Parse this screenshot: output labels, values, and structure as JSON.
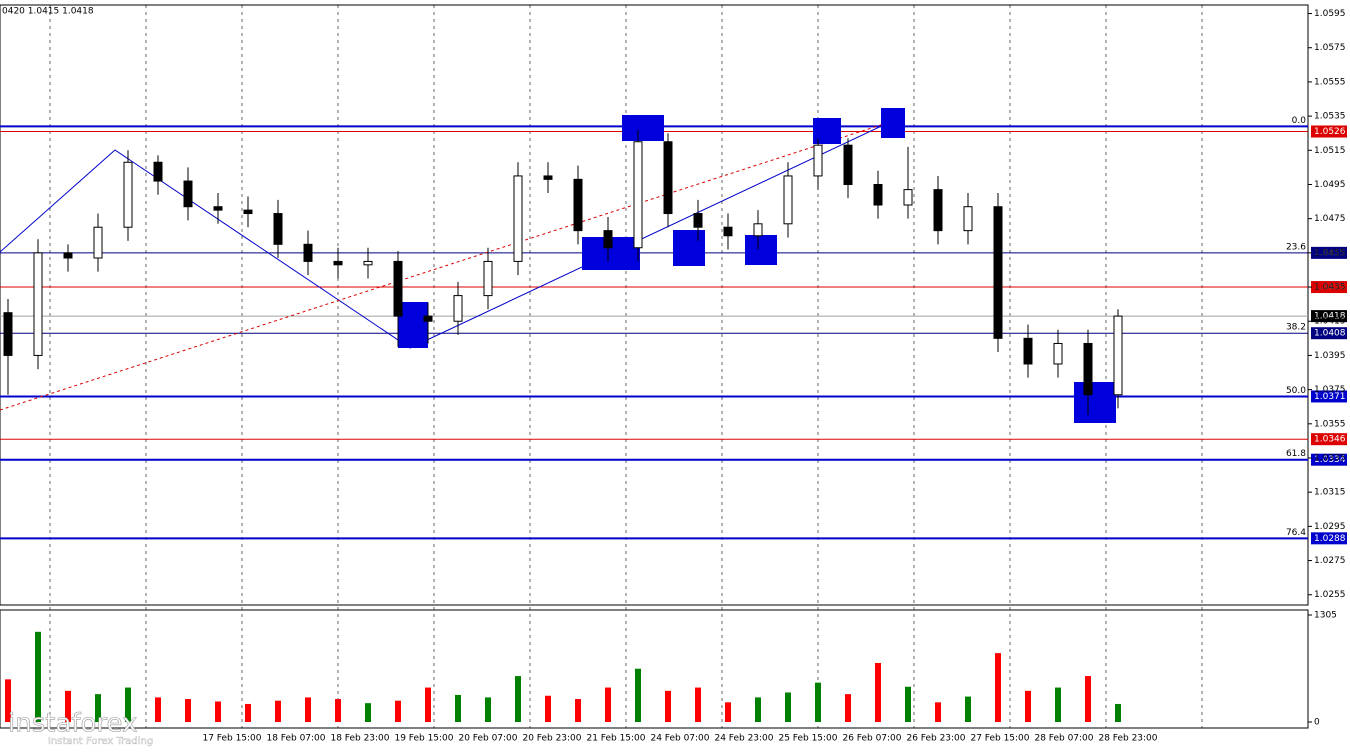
{
  "chart_data": {
    "type": "candlestick",
    "header": "0420 1.0415 1.0418",
    "watermark": "instaforex",
    "watermark_sub": "Instant Forex Trading",
    "categories": [
      "17 Feb 15:00",
      "18 Feb 07:00",
      "18 Feb 23:00",
      "19 Feb 15:00",
      "20 Feb 07:00",
      "20 Feb 23:00",
      "21 Feb 15:00",
      "24 Feb 07:00",
      "24 Feb 23:00",
      "25 Feb 15:00",
      "26 Feb 07:00",
      "26 Feb 23:00",
      "27 Feb 15:00",
      "28 Feb 07:00",
      "28 Feb 23:00"
    ],
    "ylim": [
      1.0249,
      1.06
    ],
    "yticks": [
      1.0255,
      1.0275,
      1.0295,
      1.0315,
      1.0335,
      1.0355,
      1.0375,
      1.0395,
      1.0415,
      1.0435,
      1.0455,
      1.0475,
      1.0495,
      1.0515,
      1.0535,
      1.0555,
      1.0575,
      1.0595
    ],
    "grid": true,
    "bull_color": "#ffffff",
    "bear_color": "#000000",
    "open": [
      1.042,
      1.0395,
      1.0455,
      1.0452,
      1.047,
      1.0508,
      1.0497,
      1.0482,
      1.048,
      1.0478,
      1.046,
      1.045,
      1.0448,
      1.045,
      1.0418,
      1.0415,
      1.043,
      1.045,
      1.05,
      1.0498,
      1.0468,
      1.0458,
      1.052,
      1.0478,
      1.047,
      1.0465,
      1.0472,
      1.05,
      1.0518,
      1.0495,
      1.0483,
      1.0492,
      1.0468,
      1.0482,
      1.0405,
      1.039,
      1.0402,
      1.0372
    ],
    "high": [
      1.0428,
      1.0463,
      1.046,
      1.0478,
      1.0515,
      1.0512,
      1.0505,
      1.049,
      1.0488,
      1.0486,
      1.0468,
      1.0458,
      1.0458,
      1.0456,
      1.0426,
      1.0438,
      1.0458,
      1.0508,
      1.0508,
      1.0506,
      1.0476,
      1.0527,
      1.0525,
      1.0486,
      1.0478,
      1.048,
      1.0508,
      1.0522,
      1.0522,
      1.0503,
      1.0517,
      1.05,
      1.049,
      1.049,
      1.0413,
      1.041,
      1.041,
      1.0422
    ],
    "low": [
      1.0372,
      1.0387,
      1.0444,
      1.0444,
      1.0462,
      1.0489,
      1.0474,
      1.0472,
      1.047,
      1.0452,
      1.0442,
      1.044,
      1.044,
      1.04,
      1.0402,
      1.0407,
      1.0422,
      1.0442,
      1.049,
      1.046,
      1.045,
      1.045,
      1.047,
      1.0462,
      1.0457,
      1.0457,
      1.0464,
      1.0492,
      1.0487,
      1.0475,
      1.0475,
      1.046,
      1.046,
      1.0397,
      1.0382,
      1.0382,
      1.036,
      1.0364
    ],
    "close": [
      1.0395,
      1.0455,
      1.0452,
      1.047,
      1.0508,
      1.0497,
      1.0482,
      1.048,
      1.0478,
      1.046,
      1.045,
      1.0448,
      1.045,
      1.0418,
      1.0415,
      1.043,
      1.045,
      1.05,
      1.0498,
      1.0468,
      1.0458,
      1.052,
      1.0478,
      1.047,
      1.0465,
      1.0472,
      1.05,
      1.0518,
      1.0495,
      1.0483,
      1.0492,
      1.0468,
      1.0482,
      1.0405,
      1.039,
      1.0402,
      1.0372,
      1.0418
    ],
    "levels": [
      {
        "value": 1.0529,
        "color": "#0000cc",
        "fib": "0.0"
      },
      {
        "value": 1.0526,
        "color": "#dd0000",
        "label": "1.0526"
      },
      {
        "value": 1.0455,
        "color": "#000080",
        "fib": "23.6",
        "label": "1.0455"
      },
      {
        "value": 1.0435,
        "color": "#dd0000",
        "label": "1.0435"
      },
      {
        "value": 1.0418,
        "color": "#a0a0a0",
        "label": "1.0418"
      },
      {
        "value": 1.0408,
        "color": "#000080",
        "fib": "38.2",
        "label": "1.0408"
      },
      {
        "value": 1.0371,
        "color": "#0000cc",
        "fib": "50.0",
        "label": "1.0371"
      },
      {
        "value": 1.0346,
        "color": "#dd0000",
        "label": "1.0346"
      },
      {
        "value": 1.0334,
        "color": "#0000cc",
        "fib": "61.8",
        "label": "1.0334"
      },
      {
        "value": 1.0288,
        "color": "#0000cc",
        "fib": "76.4",
        "label": "1.0288"
      }
    ],
    "volume": {
      "up_color": "#008000",
      "down_color": "#ff0000",
      "ylim": [
        0,
        1305
      ],
      "yticks": [
        0,
        1305
      ],
      "values": [
        520,
        1100,
        380,
        340,
        420,
        300,
        280,
        250,
        220,
        260,
        300,
        280,
        230,
        260,
        420,
        330,
        300,
        560,
        320,
        280,
        420,
        650,
        380,
        420,
        240,
        300,
        360,
        480,
        340,
        720,
        430,
        240,
        310,
        840,
        380,
        420,
        560,
        220
      ]
    }
  }
}
